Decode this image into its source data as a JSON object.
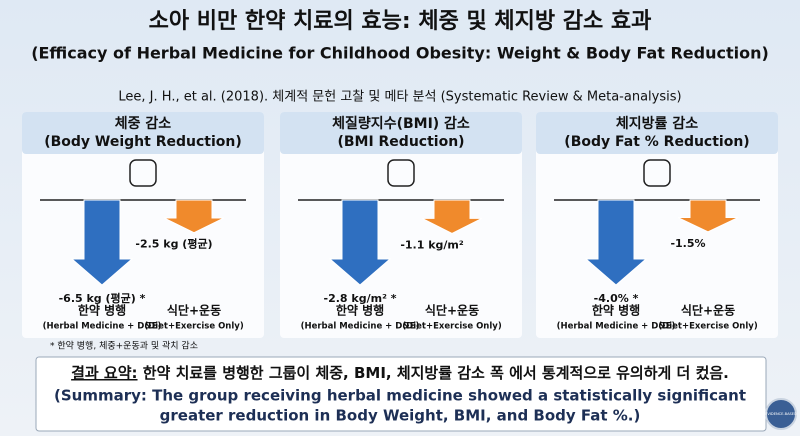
{
  "title": "소아 비만 한약 치료의 효능: 체중 및 체지방 감소 효과",
  "subtitle": "(Efficacy of Herbal Medicine for Childhood Obesity: Weight & Body Fat Reduction)",
  "source": "Lee, J. H., et al. (2018). 체계적 문헌 고찰 및 메타 분석 (Systematic Review & Meta-analysis)",
  "footnote": "* 한약 병행, 체중+운동과 및 곽치 감소",
  "summary": {
    "label": "결과 요약:",
    "text": " 한약 치료를 병행한 그룹이 체중, BMI, 체지방률 감소 폭 에서 통계적으로 유의하게 더 컸음.",
    "english": [
      "(Summary: The group receiving herbal medicine showed a statistically significant",
      "greater reduction in Body Weight, BMI, and Body Fat %.)"
    ]
  },
  "badge": "EVIDENCE-BASED",
  "chart_data": [
    {
      "type": "bar",
      "title": "체중 감소",
      "subtitle": "(Body Weight Reduction)",
      "categories": [
        "한약 병행",
        "식단+운동"
      ],
      "category_subtitles": [
        "(Herbal Medicine + D&E)",
        "(Diet+Exercise Only)"
      ],
      "values": [
        -6.5,
        -2.5
      ],
      "value_labels": [
        "-6.5 kg (평균) *",
        "-2.5 kg (평균)"
      ],
      "colors": [
        "#2f6fc0",
        "#f08a2c"
      ]
    },
    {
      "type": "bar",
      "title": "체질량지수(BMI) 감소",
      "subtitle": "(BMI Reduction)",
      "categories": [
        "한약 병행",
        "식단+운동"
      ],
      "category_subtitles": [
        "(Herbal Medicine + D&E)",
        "(Diet+Exercise Only)"
      ],
      "values": [
        -2.8,
        -1.1
      ],
      "value_labels": [
        "-2.8 kg/m² *",
        "-1.1 kg/m²"
      ],
      "colors": [
        "#2f6fc0",
        "#f08a2c"
      ]
    },
    {
      "type": "bar",
      "title": "체지방률 감소",
      "subtitle": "(Body Fat % Reduction)",
      "categories": [
        "한약 병행",
        "식단+운동"
      ],
      "category_subtitles": [
        "(Herbal Medicine + D&E)",
        "(Diet+Exercise Only)"
      ],
      "values": [
        -4.0,
        -1.5
      ],
      "value_labels": [
        "-4.0% *",
        "-1.5%"
      ],
      "colors": [
        "#2f6fc0",
        "#f08a2c"
      ]
    }
  ]
}
